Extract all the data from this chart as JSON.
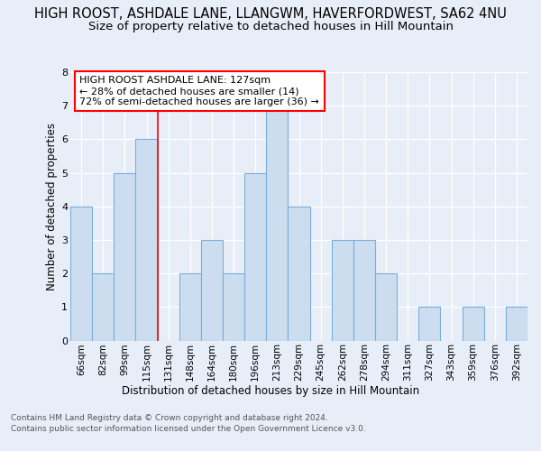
{
  "title1": "HIGH ROOST, ASHDALE LANE, LLANGWM, HAVERFORDWEST, SA62 4NU",
  "title2": "Size of property relative to detached houses in Hill Mountain",
  "xlabel": "Distribution of detached houses by size in Hill Mountain",
  "ylabel": "Number of detached properties",
  "categories": [
    "66sqm",
    "82sqm",
    "99sqm",
    "115sqm",
    "131sqm",
    "148sqm",
    "164sqm",
    "180sqm",
    "196sqm",
    "213sqm",
    "229sqm",
    "245sqm",
    "262sqm",
    "278sqm",
    "294sqm",
    "311sqm",
    "327sqm",
    "343sqm",
    "359sqm",
    "376sqm",
    "392sqm"
  ],
  "values": [
    4,
    2,
    5,
    6,
    0,
    2,
    3,
    2,
    5,
    7,
    4,
    0,
    3,
    3,
    2,
    0,
    1,
    0,
    1,
    0,
    1
  ],
  "bar_color": "#ccddf0",
  "bar_edge_color": "#7aaedb",
  "annotation_line1": "HIGH ROOST ASHDALE LANE: 127sqm",
  "annotation_line2": "← 28% of detached houses are smaller (14)",
  "annotation_line3": "72% of semi-detached houses are larger (36) →",
  "ylim": [
    0,
    8
  ],
  "yticks": [
    0,
    1,
    2,
    3,
    4,
    5,
    6,
    7,
    8
  ],
  "footer1": "Contains HM Land Registry data © Crown copyright and database right 2024.",
  "footer2": "Contains public sector information licensed under the Open Government Licence v3.0.",
  "bg_color": "#e8eef8",
  "plot_bg_color": "#e8eef8",
  "grid_color": "#ffffff",
  "title1_fontsize": 10.5,
  "title2_fontsize": 9.5,
  "red_line_index": 4
}
